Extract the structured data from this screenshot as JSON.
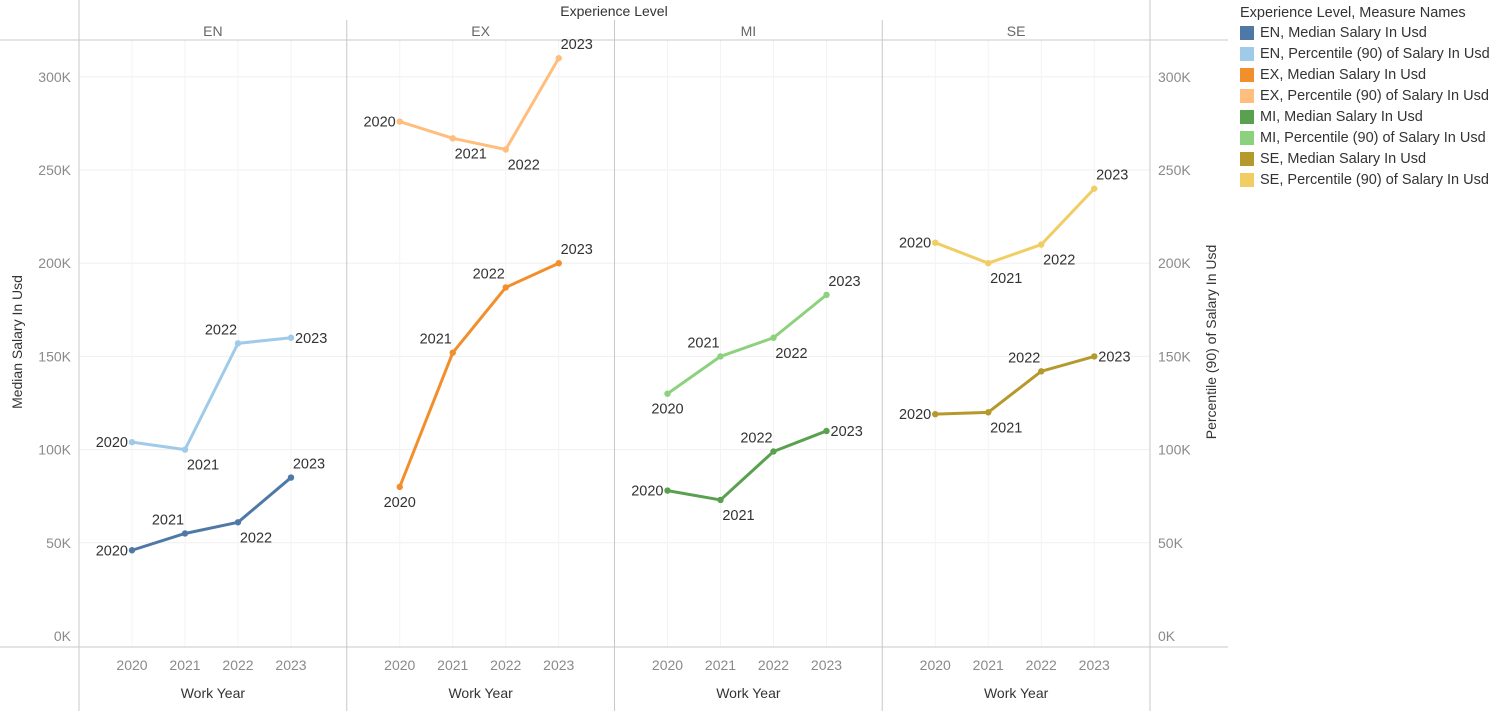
{
  "chart_data": {
    "type": "line",
    "header_title": "Experience Level",
    "panels": [
      "EN",
      "EX",
      "MI",
      "SE"
    ],
    "x": [
      2020,
      2021,
      2022,
      2023
    ],
    "x_tick_labels": [
      "2020",
      "2021",
      "2022",
      "2023"
    ],
    "xlabel": "Work Year",
    "ylabel_left": "Median Salary In Usd",
    "ylabel_right": "Percentile (90) of Salary In Usd",
    "ylim": [
      0,
      320000
    ],
    "y_ticks": [
      0,
      50000,
      100000,
      150000,
      200000,
      250000,
      300000
    ],
    "y_tick_labels": [
      "0K",
      "50K",
      "100K",
      "150K",
      "200K",
      "250K",
      "300K"
    ],
    "grid": true,
    "legend_position": "right",
    "legend": {
      "title": "Experience Level, Measure Names",
      "entries": [
        {
          "label": "EN, Median Salary In Usd",
          "color": "#4e79a7"
        },
        {
          "label": "EN, Percentile (90) of Salary In Usd",
          "color": "#a0cbe8"
        },
        {
          "label": "EX, Median Salary In Usd",
          "color": "#f28e2b"
        },
        {
          "label": "EX, Percentile (90) of Salary In Usd",
          "color": "#ffbe7d"
        },
        {
          "label": "MI, Median Salary In Usd",
          "color": "#59a14f"
        },
        {
          "label": "MI, Percentile (90) of Salary In Usd",
          "color": "#8cd17d"
        },
        {
          "label": "SE, Median Salary In Usd",
          "color": "#b6992d"
        },
        {
          "label": "SE, Percentile (90) of Salary In Usd",
          "color": "#f1ce63"
        }
      ]
    },
    "series": [
      {
        "panel": "EN",
        "measure": "Median Salary In Usd",
        "color": "#4e79a7",
        "values": [
          46000,
          55000,
          61000,
          85000
        ],
        "label_pos": [
          "left",
          "above",
          "below",
          "above"
        ]
      },
      {
        "panel": "EN",
        "measure": "Percentile (90) of Salary In Usd",
        "color": "#a0cbe8",
        "values": [
          104000,
          100000,
          157000,
          160000
        ],
        "label_pos": [
          "left",
          "below",
          "above",
          "right"
        ]
      },
      {
        "panel": "EX",
        "measure": "Median Salary In Usd",
        "color": "#f28e2b",
        "values": [
          80000,
          152000,
          187000,
          200000
        ],
        "label_pos": [
          "below",
          "above",
          "above",
          "above"
        ]
      },
      {
        "panel": "EX",
        "measure": "Percentile (90) of Salary In Usd",
        "color": "#ffbe7d",
        "values": [
          276000,
          267000,
          261000,
          310000
        ],
        "label_pos": [
          "left",
          "below",
          "below",
          "above"
        ]
      },
      {
        "panel": "MI",
        "measure": "Median Salary In Usd",
        "color": "#59a14f",
        "values": [
          78000,
          73000,
          99000,
          110000
        ],
        "label_pos": [
          "left",
          "below",
          "above",
          "right"
        ]
      },
      {
        "panel": "MI",
        "measure": "Percentile (90) of Salary In Usd",
        "color": "#8cd17d",
        "values": [
          130000,
          150000,
          160000,
          183000
        ],
        "label_pos": [
          "below",
          "above",
          "below",
          "above"
        ]
      },
      {
        "panel": "SE",
        "measure": "Median Salary In Usd",
        "color": "#b6992d",
        "values": [
          119000,
          120000,
          142000,
          150000
        ],
        "label_pos": [
          "left",
          "below",
          "above",
          "right"
        ]
      },
      {
        "panel": "SE",
        "measure": "Percentile (90) of Salary In Usd",
        "color": "#f1ce63",
        "values": [
          211000,
          200000,
          210000,
          240000
        ],
        "label_pos": [
          "left",
          "below",
          "below",
          "above"
        ]
      }
    ]
  }
}
